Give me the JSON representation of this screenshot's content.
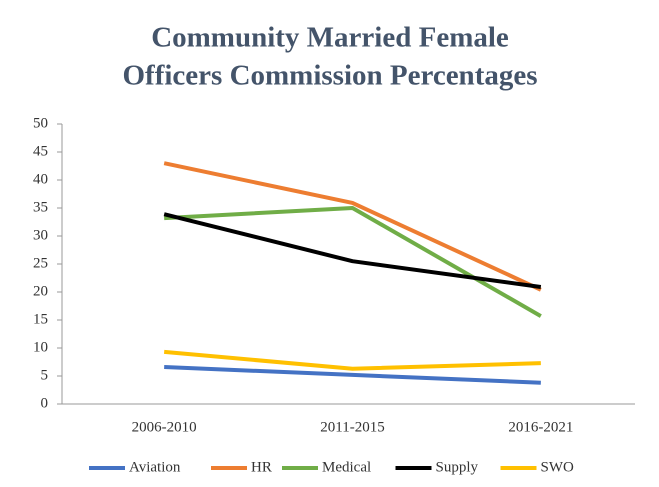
{
  "chart_data": {
    "type": "line",
    "title": [
      "Community Married Female",
      "Officers Commission Percentages"
    ],
    "categories": [
      "2006-2010",
      "2011-2015",
      "2016-2021"
    ],
    "series": [
      {
        "name": "Aviation",
        "color": "#4472c4",
        "values": [
          6.6,
          5.2,
          3.8
        ]
      },
      {
        "name": "HR",
        "color": "#ed7d31",
        "values": [
          43,
          35.9,
          20.4
        ]
      },
      {
        "name": "Medical",
        "color": "#70ad47",
        "values": [
          33.2,
          35,
          15.7
        ]
      },
      {
        "name": "Supply",
        "color": "#000000",
        "values": [
          33.9,
          25.5,
          20.9
        ]
      },
      {
        "name": "SWO",
        "color": "#ffc000",
        "values": [
          9.3,
          6.3,
          7.3
        ]
      }
    ],
    "ylim": [
      0,
      50
    ],
    "yticks": [
      0,
      5,
      10,
      15,
      20,
      25,
      30,
      35,
      40,
      45,
      50
    ],
    "grid": false,
    "legend": "bottom"
  }
}
